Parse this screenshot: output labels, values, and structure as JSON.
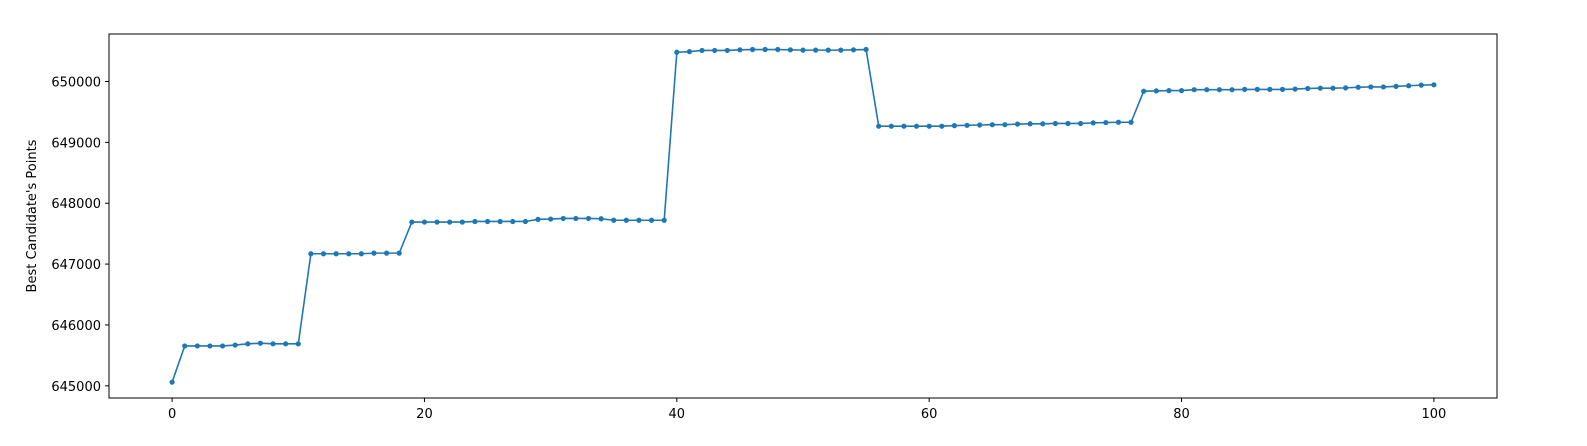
{
  "chart_data": {
    "type": "line",
    "title": "",
    "xlabel": "",
    "ylabel": "Best Candidate's Points",
    "xlim": [
      -5,
      105
    ],
    "ylim": [
      644800,
      650780
    ],
    "xticks": [
      0,
      20,
      40,
      60,
      80,
      100
    ],
    "yticks": [
      645000,
      646000,
      647000,
      648000,
      649000,
      650000
    ],
    "grid": false,
    "legend": "none",
    "series": [
      {
        "color": "#1f77b4",
        "marker": "circle",
        "x": [
          0,
          1,
          2,
          3,
          4,
          5,
          6,
          7,
          8,
          9,
          10,
          11,
          12,
          13,
          14,
          15,
          16,
          17,
          18,
          19,
          20,
          21,
          22,
          23,
          24,
          25,
          26,
          27,
          28,
          29,
          30,
          31,
          32,
          33,
          34,
          35,
          36,
          37,
          38,
          39,
          40,
          41,
          42,
          43,
          44,
          45,
          46,
          47,
          48,
          49,
          50,
          51,
          52,
          53,
          54,
          55,
          56,
          57,
          58,
          59,
          60,
          61,
          62,
          63,
          64,
          65,
          66,
          67,
          68,
          69,
          70,
          71,
          72,
          73,
          74,
          75,
          76,
          77,
          78,
          79,
          80,
          81,
          82,
          83,
          84,
          85,
          86,
          87,
          88,
          89,
          90,
          91,
          92,
          93,
          94,
          95,
          96,
          97,
          98,
          99,
          100
        ],
        "y": [
          645060,
          645655,
          645655,
          645655,
          645655,
          645670,
          645690,
          645700,
          645690,
          645690,
          645690,
          647170,
          647170,
          647170,
          647170,
          647170,
          647180,
          647180,
          647180,
          647690,
          647690,
          647690,
          647690,
          647690,
          647700,
          647700,
          647700,
          647700,
          647700,
          647735,
          647740,
          647750,
          647750,
          647750,
          647745,
          647720,
          647720,
          647720,
          647720,
          647720,
          650480,
          650490,
          650510,
          650510,
          650510,
          650520,
          650525,
          650525,
          650525,
          650520,
          650515,
          650515,
          650515,
          650515,
          650520,
          650525,
          649265,
          649265,
          649265,
          649265,
          649265,
          649265,
          649275,
          649280,
          649285,
          649290,
          649290,
          649300,
          649305,
          649305,
          649310,
          649310,
          649310,
          649320,
          649325,
          649330,
          649330,
          649840,
          649845,
          649850,
          649850,
          649865,
          649865,
          649865,
          649865,
          649870,
          649870,
          649870,
          649870,
          649875,
          649885,
          649890,
          649890,
          649895,
          649905,
          649910,
          649910,
          649920,
          649930,
          649940,
          649945
        ]
      }
    ]
  }
}
